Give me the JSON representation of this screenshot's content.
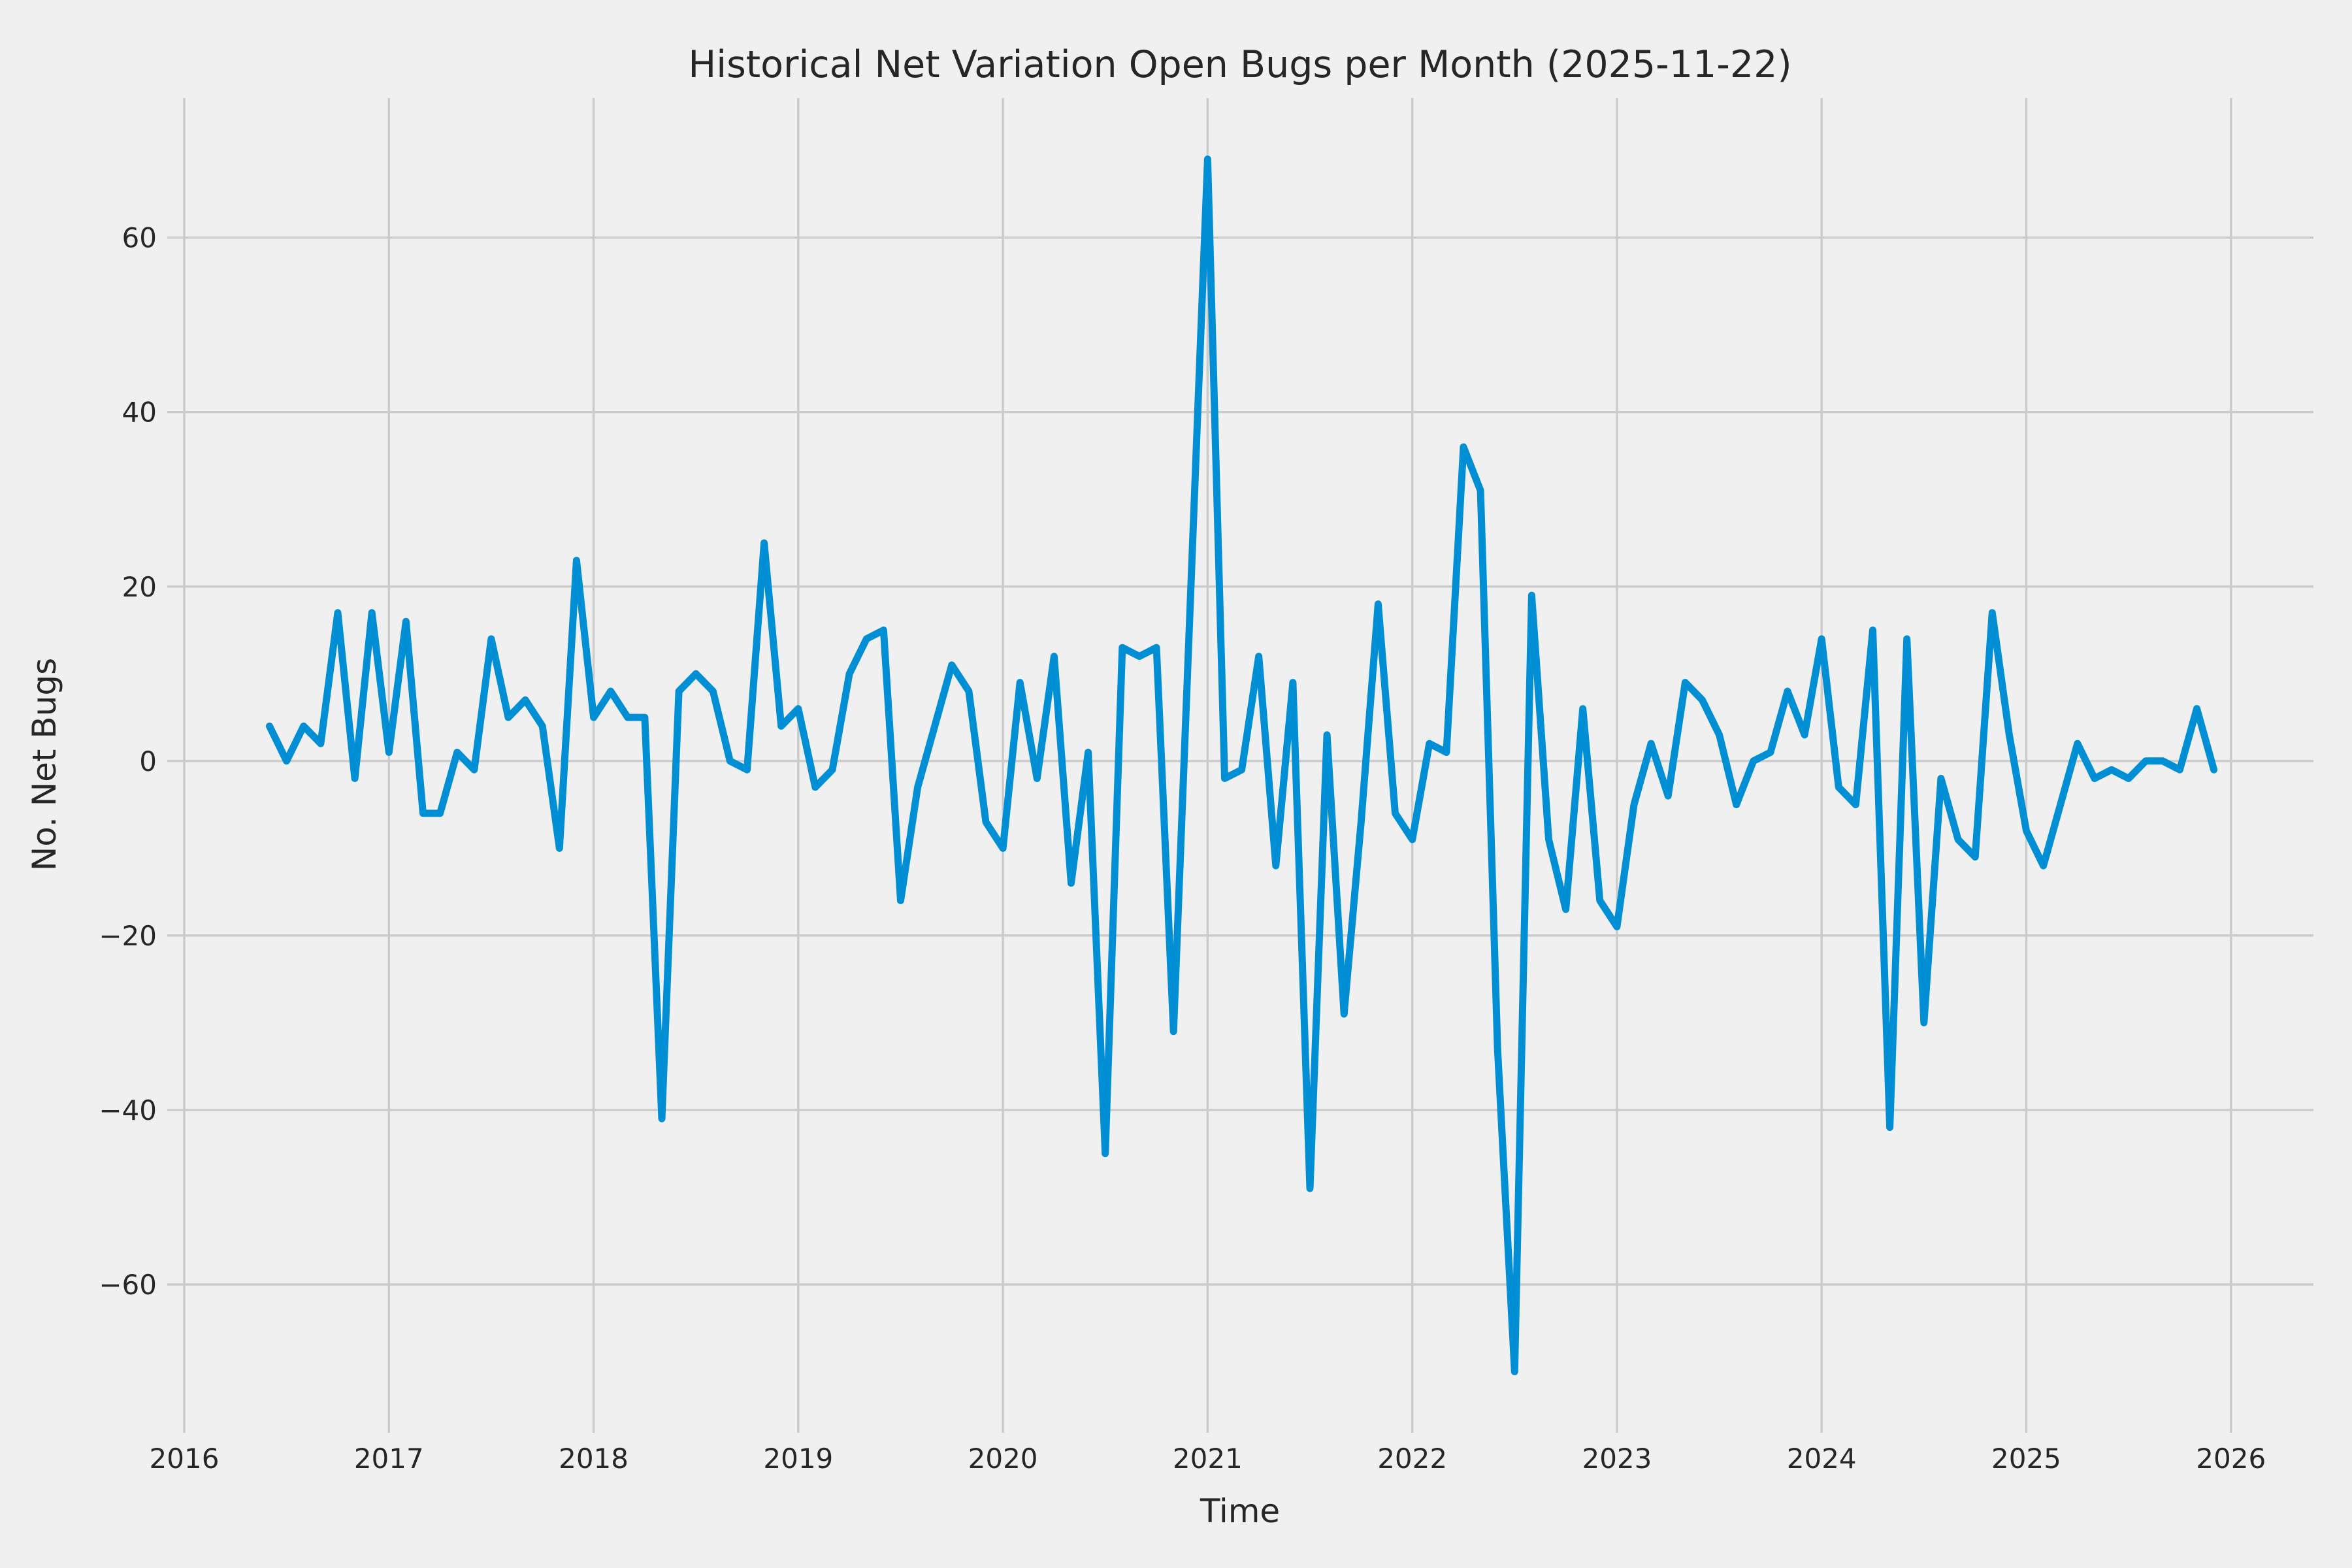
{
  "chart_data": {
    "type": "line",
    "title": "Historical Net Variation Open Bugs per Month (2025-11-22)",
    "xlabel": "Time",
    "ylabel": "No. Net Bugs",
    "legend_position": "none",
    "grid": true,
    "x_start_month": "2016-05",
    "x_end_month": "2025-11",
    "series": [
      {
        "name": "net-variation-open-bugs",
        "values": [
          4,
          0,
          4,
          2,
          17,
          -2,
          17,
          1,
          16,
          -6,
          -6,
          1,
          -1,
          14,
          5,
          7,
          4,
          -10,
          23,
          5,
          8,
          5,
          5,
          -41,
          8,
          10,
          8,
          0,
          -1,
          25,
          4,
          6,
          -3,
          -1,
          10,
          14,
          15,
          -16,
          -3,
          4,
          11,
          8,
          -7,
          -10,
          9,
          -2,
          12,
          -14,
          1,
          -45,
          13,
          12,
          13,
          -31,
          19,
          69,
          -2,
          -1,
          12,
          -12,
          9,
          -49,
          3,
          -29,
          -7,
          18,
          -6,
          -9,
          2,
          1,
          36,
          31,
          -33,
          -70,
          19,
          -9,
          -17,
          6,
          -16,
          -19,
          -5,
          2,
          -4,
          9,
          7,
          3,
          -5,
          0,
          1,
          8,
          3,
          14,
          -3,
          -5,
          15,
          -42,
          14,
          -30,
          -2,
          -9,
          -11,
          17,
          3,
          -8,
          -12,
          -5,
          2,
          -2,
          -1,
          -2,
          0,
          0,
          -1,
          6,
          -1
        ]
      }
    ],
    "xticks": [
      2016,
      2017,
      2018,
      2019,
      2020,
      2021,
      2022,
      2023,
      2024,
      2025,
      2026
    ],
    "yticks": [
      60,
      40,
      20,
      0,
      -20,
      -40,
      -60
    ],
    "xlim_years": [
      2015.917,
      2026.403
    ],
    "ylim": [
      -77,
      76
    ],
    "colors": {
      "line": "#008fd5",
      "background": "#f0f0f0",
      "grid": "#cbcbcb",
      "text": "#262626"
    }
  }
}
